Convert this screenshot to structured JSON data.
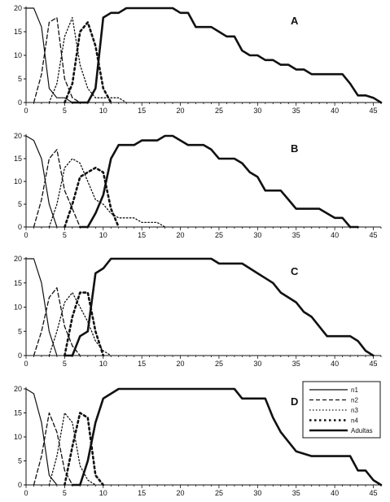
{
  "legend": {
    "entries": [
      "n1",
      "n2",
      "n3",
      "n4",
      "Adultas"
    ]
  },
  "chart_data": [
    {
      "type": "line",
      "panel_label": "A",
      "xlim": [
        0,
        46
      ],
      "ylim": [
        0,
        20
      ],
      "xticks": [
        0,
        5,
        10,
        15,
        20,
        25,
        30,
        35,
        40,
        45
      ],
      "yticks": [
        0,
        5,
        10,
        15,
        20
      ],
      "series": [
        {
          "name": "n1",
          "style": "solid-thin",
          "points": [
            [
              0,
              20
            ],
            [
              1,
              20
            ],
            [
              2,
              16
            ],
            [
              3,
              3
            ],
            [
              4,
              1
            ],
            [
              5,
              1
            ],
            [
              6,
              0
            ]
          ]
        },
        {
          "name": "n2",
          "style": "dashed",
          "points": [
            [
              1,
              0
            ],
            [
              2,
              6
            ],
            [
              3,
              17
            ],
            [
              4,
              18
            ],
            [
              5,
              5
            ],
            [
              6,
              1
            ],
            [
              7,
              0
            ]
          ]
        },
        {
          "name": "n3",
          "style": "dotted",
          "points": [
            [
              3,
              0
            ],
            [
              4,
              4
            ],
            [
              5,
              14
            ],
            [
              6,
              18
            ],
            [
              7,
              8
            ],
            [
              8,
              3
            ],
            [
              9,
              1
            ],
            [
              10,
              1
            ],
            [
              11,
              1
            ],
            [
              12,
              1
            ],
            [
              13,
              0
            ]
          ]
        },
        {
          "name": "n4",
          "style": "heavy-dotted",
          "points": [
            [
              5,
              0
            ],
            [
              6,
              4
            ],
            [
              7,
              15
            ],
            [
              8,
              17
            ],
            [
              9,
              12
            ],
            [
              10,
              3
            ],
            [
              11,
              0
            ]
          ]
        },
        {
          "name": "Adultas",
          "style": "solid-thick",
          "points": [
            [
              6,
              0
            ],
            [
              7,
              0
            ],
            [
              8,
              0
            ],
            [
              9,
              3
            ],
            [
              10,
              18
            ],
            [
              11,
              19
            ],
            [
              12,
              19
            ],
            [
              13,
              20
            ],
            [
              19,
              20
            ],
            [
              20,
              19
            ],
            [
              21,
              19
            ],
            [
              22,
              16
            ],
            [
              24,
              16
            ],
            [
              25,
              15
            ],
            [
              26,
              14
            ],
            [
              27,
              14
            ],
            [
              28,
              11
            ],
            [
              29,
              10
            ],
            [
              30,
              10
            ],
            [
              31,
              9
            ],
            [
              32,
              9
            ],
            [
              33,
              8
            ],
            [
              34,
              8
            ],
            [
              35,
              7
            ],
            [
              36,
              7
            ],
            [
              37,
              6
            ],
            [
              41,
              6
            ],
            [
              42,
              4
            ],
            [
              43,
              1.5
            ],
            [
              44,
              1.5
            ],
            [
              45,
              1
            ],
            [
              46,
              0
            ]
          ]
        }
      ]
    },
    {
      "type": "line",
      "panel_label": "B",
      "xlim": [
        0,
        46
      ],
      "ylim": [
        0,
        20
      ],
      "xticks": [
        0,
        5,
        10,
        15,
        20,
        25,
        30,
        35,
        40,
        45
      ],
      "yticks": [
        0,
        5,
        10,
        15,
        20
      ],
      "series": [
        {
          "name": "n1",
          "style": "solid-thin",
          "points": [
            [
              0,
              20
            ],
            [
              1,
              19
            ],
            [
              2,
              15
            ],
            [
              3,
              5
            ],
            [
              4,
              0
            ]
          ]
        },
        {
          "name": "n2",
          "style": "dashed",
          "points": [
            [
              1,
              0
            ],
            [
              2,
              6
            ],
            [
              3,
              15
            ],
            [
              4,
              17
            ],
            [
              5,
              8
            ],
            [
              6,
              4
            ],
            [
              7,
              0
            ]
          ]
        },
        {
          "name": "n3",
          "style": "dotted",
          "points": [
            [
              3,
              0
            ],
            [
              4,
              5
            ],
            [
              5,
              13
            ],
            [
              6,
              15
            ],
            [
              7,
              14
            ],
            [
              8,
              10
            ],
            [
              9,
              6
            ],
            [
              10,
              5
            ],
            [
              11,
              3
            ],
            [
              12,
              2
            ],
            [
              14,
              2
            ],
            [
              15,
              1
            ],
            [
              17,
              1
            ],
            [
              18,
              0
            ]
          ]
        },
        {
          "name": "n4",
          "style": "heavy-dotted",
          "points": [
            [
              5,
              0
            ],
            [
              6,
              5
            ],
            [
              7,
              11
            ],
            [
              8,
              12
            ],
            [
              9,
              13
            ],
            [
              10,
              12
            ],
            [
              11,
              4
            ],
            [
              12,
              0
            ]
          ]
        },
        {
          "name": "Adultas",
          "style": "solid-thick",
          "points": [
            [
              7,
              0
            ],
            [
              8,
              0
            ],
            [
              9,
              3
            ],
            [
              10,
              7
            ],
            [
              11,
              15
            ],
            [
              12,
              18
            ],
            [
              14,
              18
            ],
            [
              15,
              19
            ],
            [
              17,
              19
            ],
            [
              18,
              20
            ],
            [
              19,
              20
            ],
            [
              20,
              19
            ],
            [
              21,
              18
            ],
            [
              23,
              18
            ],
            [
              24,
              17
            ],
            [
              25,
              15
            ],
            [
              27,
              15
            ],
            [
              28,
              14
            ],
            [
              29,
              12
            ],
            [
              30,
              11
            ],
            [
              31,
              8
            ],
            [
              33,
              8
            ],
            [
              34,
              6
            ],
            [
              35,
              4
            ],
            [
              38,
              4
            ],
            [
              39,
              3
            ],
            [
              40,
              2
            ],
            [
              41,
              2
            ],
            [
              42,
              0
            ],
            [
              43,
              0
            ]
          ]
        }
      ]
    },
    {
      "type": "line",
      "panel_label": "C",
      "xlim": [
        0,
        46
      ],
      "ylim": [
        0,
        20
      ],
      "xticks": [
        0,
        5,
        10,
        15,
        20,
        25,
        30,
        35,
        40,
        45
      ],
      "yticks": [
        0,
        5,
        10,
        15,
        20
      ],
      "series": [
        {
          "name": "n1",
          "style": "solid-thin",
          "points": [
            [
              0,
              20
            ],
            [
              1,
              20
            ],
            [
              2,
              15
            ],
            [
              3,
              5
            ],
            [
              4,
              0
            ]
          ]
        },
        {
          "name": "n2",
          "style": "dashed",
          "points": [
            [
              1,
              0
            ],
            [
              2,
              5
            ],
            [
              3,
              12
            ],
            [
              4,
              14
            ],
            [
              5,
              6
            ],
            [
              6,
              2
            ],
            [
              7,
              0
            ]
          ]
        },
        {
          "name": "n3",
          "style": "dotted",
          "points": [
            [
              3,
              0
            ],
            [
              4,
              5
            ],
            [
              5,
              11
            ],
            [
              6,
              13
            ],
            [
              7,
              10
            ],
            [
              8,
              7
            ],
            [
              9,
              3
            ],
            [
              10,
              1
            ],
            [
              11,
              0
            ]
          ]
        },
        {
          "name": "n4",
          "style": "heavy-dotted",
          "points": [
            [
              5,
              0
            ],
            [
              6,
              8
            ],
            [
              7,
              13
            ],
            [
              8,
              13
            ],
            [
              9,
              5
            ],
            [
              10,
              0
            ]
          ]
        },
        {
          "name": "Adultas",
          "style": "solid-thick",
          "points": [
            [
              5,
              0
            ],
            [
              6,
              0
            ],
            [
              7,
              4
            ],
            [
              8,
              5
            ],
            [
              9,
              17
            ],
            [
              10,
              18
            ],
            [
              11,
              20
            ],
            [
              24,
              20
            ],
            [
              25,
              19
            ],
            [
              28,
              19
            ],
            [
              29,
              18
            ],
            [
              30,
              17
            ],
            [
              31,
              16
            ],
            [
              32,
              15
            ],
            [
              33,
              13
            ],
            [
              34,
              12
            ],
            [
              35,
              11
            ],
            [
              36,
              9
            ],
            [
              37,
              8
            ],
            [
              38,
              6
            ],
            [
              39,
              4
            ],
            [
              42,
              4
            ],
            [
              43,
              3
            ],
            [
              44,
              1
            ],
            [
              45,
              0
            ]
          ]
        }
      ]
    },
    {
      "type": "line",
      "panel_label": "D",
      "xlim": [
        0,
        46
      ],
      "ylim": [
        0,
        20
      ],
      "xticks": [
        0,
        5,
        10,
        15,
        20,
        25,
        30,
        35,
        40,
        45
      ],
      "yticks": [
        0,
        5,
        10,
        15,
        20
      ],
      "series": [
        {
          "name": "n1",
          "style": "solid-thin",
          "points": [
            [
              0,
              20
            ],
            [
              1,
              19
            ],
            [
              2,
              13
            ],
            [
              3,
              2
            ],
            [
              4,
              0
            ]
          ]
        },
        {
          "name": "n2",
          "style": "dashed",
          "points": [
            [
              1,
              0
            ],
            [
              2,
              6
            ],
            [
              3,
              15
            ],
            [
              4,
              11
            ],
            [
              5,
              3
            ],
            [
              6,
              0
            ]
          ]
        },
        {
          "name": "n3",
          "style": "dotted",
          "points": [
            [
              3,
              0
            ],
            [
              4,
              6
            ],
            [
              5,
              15
            ],
            [
              6,
              13
            ],
            [
              7,
              4
            ],
            [
              8,
              1
            ],
            [
              9,
              0
            ]
          ]
        },
        {
          "name": "n4",
          "style": "heavy-dotted",
          "points": [
            [
              5,
              0
            ],
            [
              6,
              8
            ],
            [
              7,
              15
            ],
            [
              8,
              14
            ],
            [
              9,
              2
            ],
            [
              10,
              0
            ]
          ]
        },
        {
          "name": "Adultas",
          "style": "solid-thick",
          "points": [
            [
              6,
              0
            ],
            [
              7,
              0
            ],
            [
              8,
              5
            ],
            [
              9,
              13
            ],
            [
              10,
              18
            ],
            [
              11,
              19
            ],
            [
              12,
              20
            ],
            [
              27,
              20
            ],
            [
              28,
              18
            ],
            [
              31,
              18
            ],
            [
              32,
              14
            ],
            [
              33,
              11
            ],
            [
              34,
              9
            ],
            [
              35,
              7
            ],
            [
              37,
              6
            ],
            [
              40,
              6
            ],
            [
              42,
              6
            ],
            [
              43,
              3
            ],
            [
              44,
              3
            ],
            [
              45,
              1
            ],
            [
              46,
              0
            ]
          ]
        }
      ]
    }
  ]
}
